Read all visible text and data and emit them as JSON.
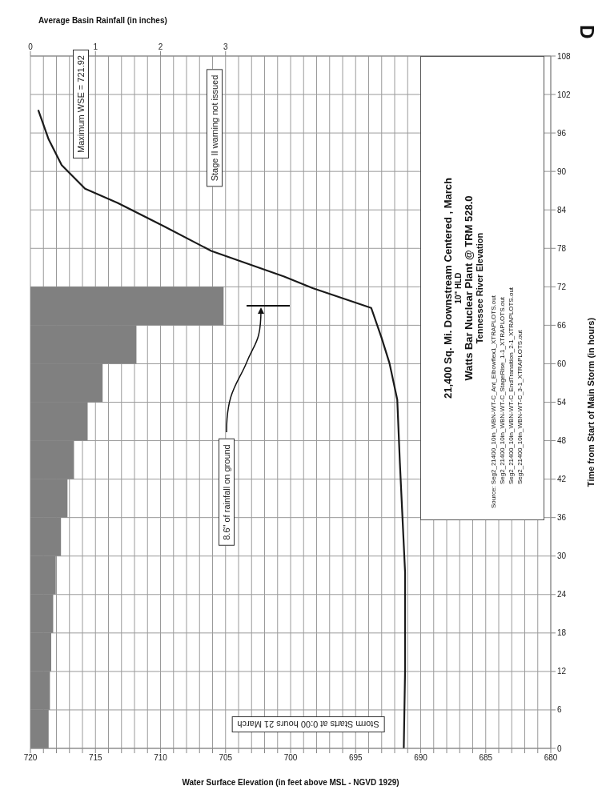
{
  "chart_data": {
    "type": "line",
    "orientation": "horizontal",
    "title": "21,400 Sq. Mi. Downstream Centered , March",
    "subtitle": "10\" HLD",
    "xlabel": "Water Surface Elevation (in feet above MSL - NGVD 1929)",
    "ylabel": "Time from Start of Main Storm (in hours)",
    "x2label": "Average Basin Rainfall (in inches)",
    "series": [
      {
        "color": "#1a1a1a",
        "x": [
          0,
          12,
          27.5,
          44.6,
          54.4,
          60.1,
          64,
          68.7,
          71.8,
          73.6,
          77.6,
          81.4,
          85.1,
          87.3,
          91,
          95,
          99.6
        ],
        "values": [
          691.3,
          691.2,
          691.2,
          691.6,
          691.8,
          692.4,
          693,
          693.8,
          698.3,
          700.5,
          706.1,
          709.7,
          713.3,
          715.8,
          717.6,
          718.6,
          719.4
        ]
      },
      {
        "type": "bar",
        "axis": "x2",
        "color": "#808080",
        "x": [
          3,
          9,
          15,
          21,
          27,
          33,
          39,
          45,
          51,
          57,
          63,
          69
        ],
        "values": [
          0.28,
          0.3,
          0.32,
          0.35,
          0.39,
          0.47,
          0.57,
          0.67,
          0.88,
          1.11,
          1.63,
          2.97
        ]
      }
    ],
    "xlim": [
      720,
      680
    ],
    "xticks": [
      680,
      {
        "value": 681,
        "label": null
      },
      {
        "value": 682,
        "label": null
      },
      {
        "value": 683,
        "label": null
      },
      {
        "value": 684,
        "label": null
      },
      685,
      {
        "value": 686,
        "label": null
      },
      {
        "value": 687,
        "label": null
      },
      {
        "value": 688,
        "label": null
      },
      {
        "value": 689,
        "label": null
      },
      690,
      {
        "value": 691,
        "label": null
      },
      {
        "value": 692,
        "label": null
      },
      {
        "value": 693,
        "label": null
      },
      {
        "value": 694,
        "label": null
      },
      695,
      {
        "value": 696,
        "label": null
      },
      {
        "value": 697,
        "label": null
      },
      {
        "value": 698,
        "label": null
      },
      {
        "value": 699,
        "label": null
      },
      700,
      {
        "value": 701,
        "label": null
      },
      {
        "value": 702,
        "label": null
      },
      {
        "value": 703,
        "label": null
      },
      {
        "value": 704,
        "label": null
      },
      705,
      {
        "value": 706,
        "label": null
      },
      {
        "value": 707,
        "label": null
      },
      {
        "value": 708,
        "label": null
      },
      {
        "value": 709,
        "label": null
      },
      710,
      {
        "value": 711,
        "label": null
      },
      {
        "value": 712,
        "label": null
      },
      {
        "value": 713,
        "label": null
      },
      {
        "value": 714,
        "label": null
      },
      715,
      {
        "value": 716,
        "label": null
      },
      {
        "value": 717,
        "label": null
      },
      {
        "value": 718,
        "label": null
      },
      {
        "value": 719,
        "label": null
      },
      720
    ],
    "x2lim": [
      0,
      8
    ],
    "x2ticks": [
      0,
      1,
      2,
      3
    ],
    "ylim": [
      0,
      108
    ],
    "yticks": [
      0,
      6,
      12,
      18,
      24,
      30,
      36,
      42,
      48,
      54,
      60,
      66,
      72,
      78,
      84,
      90,
      96,
      102,
      108
    ],
    "grid": true,
    "annotations": [
      "Maximum WSE = 721.92",
      "Stage II warning not issued",
      "Storm Starts at 0:00 hours 21 March",
      "8.6\" of rainfall on ground",
      "D",
      "Watts Bar Nuclear Plant @ TRM 528.0",
      "Tennessee River Elevation",
      "Source: Seg2_21400_10in_WBN-WT-C_Ant_Elbowflex1_XTRAPLOTS.out",
      "Seg2_21400_10in_WBN-WT-C_StageRise_1-1_XTRAPLOTS.out",
      "Seg2_21400_10in_WBN-WT-C_EndTransition_2-1_XTRAPLOTS.out",
      "Seg2_21400_10in_WBN-WT-C_3-1_XTRAPLOTS.out"
    ]
  }
}
